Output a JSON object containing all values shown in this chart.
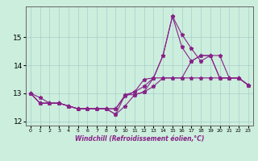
{
  "xlabel": "Windchill (Refroidissement éolien,°C)",
  "background_color": "#cceedd",
  "grid_color": "#aacccc",
  "line_color": "#882288",
  "x": [
    0,
    1,
    2,
    3,
    4,
    5,
    6,
    7,
    8,
    9,
    10,
    11,
    12,
    13,
    14,
    15,
    16,
    17,
    18,
    19,
    20,
    21,
    22,
    23
  ],
  "series": [
    [
      13.0,
      12.85,
      12.65,
      12.65,
      12.55,
      12.45,
      12.45,
      12.45,
      12.45,
      12.45,
      12.9,
      13.05,
      13.5,
      13.55,
      14.35,
      15.75,
      15.1,
      14.6,
      14.15,
      14.35,
      14.35,
      13.55,
      13.55,
      13.3
    ],
    [
      13.0,
      12.65,
      12.65,
      12.65,
      12.55,
      12.45,
      12.45,
      12.45,
      12.45,
      12.25,
      12.55,
      12.95,
      13.05,
      13.25,
      13.55,
      13.55,
      13.55,
      14.15,
      14.35,
      14.35,
      13.55,
      13.55,
      13.55,
      13.3
    ],
    [
      13.0,
      12.65,
      12.65,
      12.65,
      12.55,
      12.45,
      12.45,
      12.45,
      12.45,
      12.25,
      12.95,
      13.05,
      13.25,
      13.55,
      13.55,
      13.55,
      13.55,
      13.55,
      13.55,
      13.55,
      13.55,
      13.55,
      13.55,
      13.3
    ],
    [
      13.0,
      12.65,
      12.65,
      12.65,
      12.55,
      12.45,
      12.45,
      12.45,
      12.45,
      12.45,
      12.95,
      12.95,
      13.05,
      13.55,
      14.35,
      15.75,
      14.65,
      14.15,
      14.35,
      14.35,
      13.55,
      13.55,
      13.55,
      13.3
    ]
  ],
  "ylim": [
    11.85,
    16.1
  ],
  "yticks": [
    12,
    13,
    14,
    15
  ],
  "xticks": [
    0,
    1,
    2,
    3,
    4,
    5,
    6,
    7,
    8,
    9,
    10,
    11,
    12,
    13,
    14,
    15,
    16,
    17,
    18,
    19,
    20,
    21,
    22,
    23
  ],
  "marker": "*",
  "markersize": 3.5,
  "linewidth": 0.8
}
